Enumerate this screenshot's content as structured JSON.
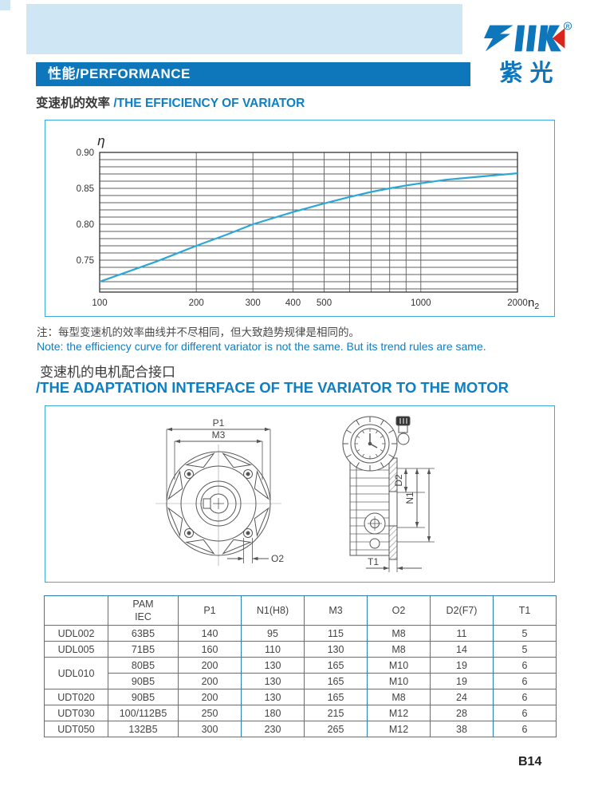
{
  "brand": {
    "logo_text": "ZIK",
    "registered_mark": "R",
    "logo_cn": "紫光"
  },
  "header": {
    "bar_title": "性能/PERFORMANCE"
  },
  "section1": {
    "title_cn": "变速机的效率",
    "title_en": "/THE EFFICIENCY OF VARIATOR"
  },
  "chart_data": {
    "type": "line",
    "title": "变速机的效率/THE EFFICIENCY OF VARIATOR",
    "xlabel": "n",
    "xlabel_sub": "2",
    "ylabel": "η",
    "x_scale": "log",
    "xlim": [
      100,
      2000
    ],
    "ylim": [
      0.7055,
      0.9
    ],
    "x_ticks_labeled": [
      100,
      200,
      300,
      400,
      500,
      1000,
      2000
    ],
    "x_gridlines": [
      200,
      300,
      400,
      500,
      600,
      700,
      800,
      900,
      1000
    ],
    "y_ticks_labeled": [
      0.75,
      0.8,
      0.85,
      0.9
    ],
    "y_grid_min": 0.71,
    "y_grid_max": 0.9,
    "y_grid_step": 0.01,
    "grid": true,
    "legend": false,
    "series": [
      {
        "name": "variator efficiency",
        "color": "#2ba7d8",
        "x": [
          100,
          150,
          200,
          250,
          300,
          400,
          500,
          600,
          700,
          800,
          900,
          1000,
          1200,
          1500,
          2000
        ],
        "y": [
          0.72,
          0.748,
          0.77,
          0.786,
          0.8,
          0.817,
          0.829,
          0.838,
          0.845,
          0.85,
          0.854,
          0.857,
          0.862,
          0.866,
          0.871
        ]
      }
    ]
  },
  "notes": {
    "cn": "注：每型变速机的效率曲线并不尽相同，但大致趋势规律是相同的。",
    "en": "Note: the efficiency curve for different variator is not the same. But its trend rules are same."
  },
  "section2": {
    "title_cn": "变速机的电机配合接口",
    "title_en": "/THE ADAPTATION INTERFACE OF THE VARIATOR TO THE MOTOR"
  },
  "diagram": {
    "labels": {
      "p1": "P1",
      "m3": "M3",
      "o2": "O2",
      "d2": "D2",
      "n1": "N1",
      "t1": "T1"
    }
  },
  "table": {
    "headers": {
      "model": "",
      "pam_line1": "PAM",
      "pam_line2": "IEC",
      "p1": "P1",
      "n1": "N1(H8)",
      "m3": "M3",
      "o2": "O2",
      "d2": "D2(F7)",
      "t1": "T1"
    },
    "rows": [
      {
        "model": "UDL002",
        "pam": "63B5",
        "p1": "140",
        "n1": "95",
        "m3": "115",
        "o2": "M8",
        "d2": "11",
        "t1": "5"
      },
      {
        "model": "UDL005",
        "pam": "71B5",
        "p1": "160",
        "n1": "110",
        "m3": "130",
        "o2": "M8",
        "d2": "14",
        "t1": "5"
      },
      {
        "model": "UDL010",
        "pam": "80B5",
        "p1": "200",
        "n1": "130",
        "m3": "165",
        "o2": "M10",
        "d2": "19",
        "t1": "6"
      },
      {
        "model": "UDL010",
        "pam": "90B5",
        "p1": "200",
        "n1": "130",
        "m3": "165",
        "o2": "M10",
        "d2": "19",
        "t1": "6"
      },
      {
        "model": "UDT020",
        "pam": "90B5",
        "p1": "200",
        "n1": "130",
        "m3": "165",
        "o2": "M8",
        "d2": "24",
        "t1": "6"
      },
      {
        "model": "UDT030",
        "pam": "100/112B5",
        "p1": "250",
        "n1": "180",
        "m3": "215",
        "o2": "M12",
        "d2": "28",
        "t1": "6"
      },
      {
        "model": "UDT050",
        "pam": "132B5",
        "p1": "300",
        "n1": "230",
        "m3": "265",
        "o2": "M12",
        "d2": "38",
        "t1": "6"
      }
    ]
  },
  "footer": {
    "page": "B14"
  },
  "colors": {
    "accent_blue": "#0e76bb",
    "light_blue_band": "#cfe6f5",
    "title_blue": "#0e7fc2",
    "curve_blue": "#2ba7d8",
    "box_border_blue": "#3fa9dc",
    "table_border_blue": "#2e7fb5",
    "logo_red": "#d9251c"
  }
}
